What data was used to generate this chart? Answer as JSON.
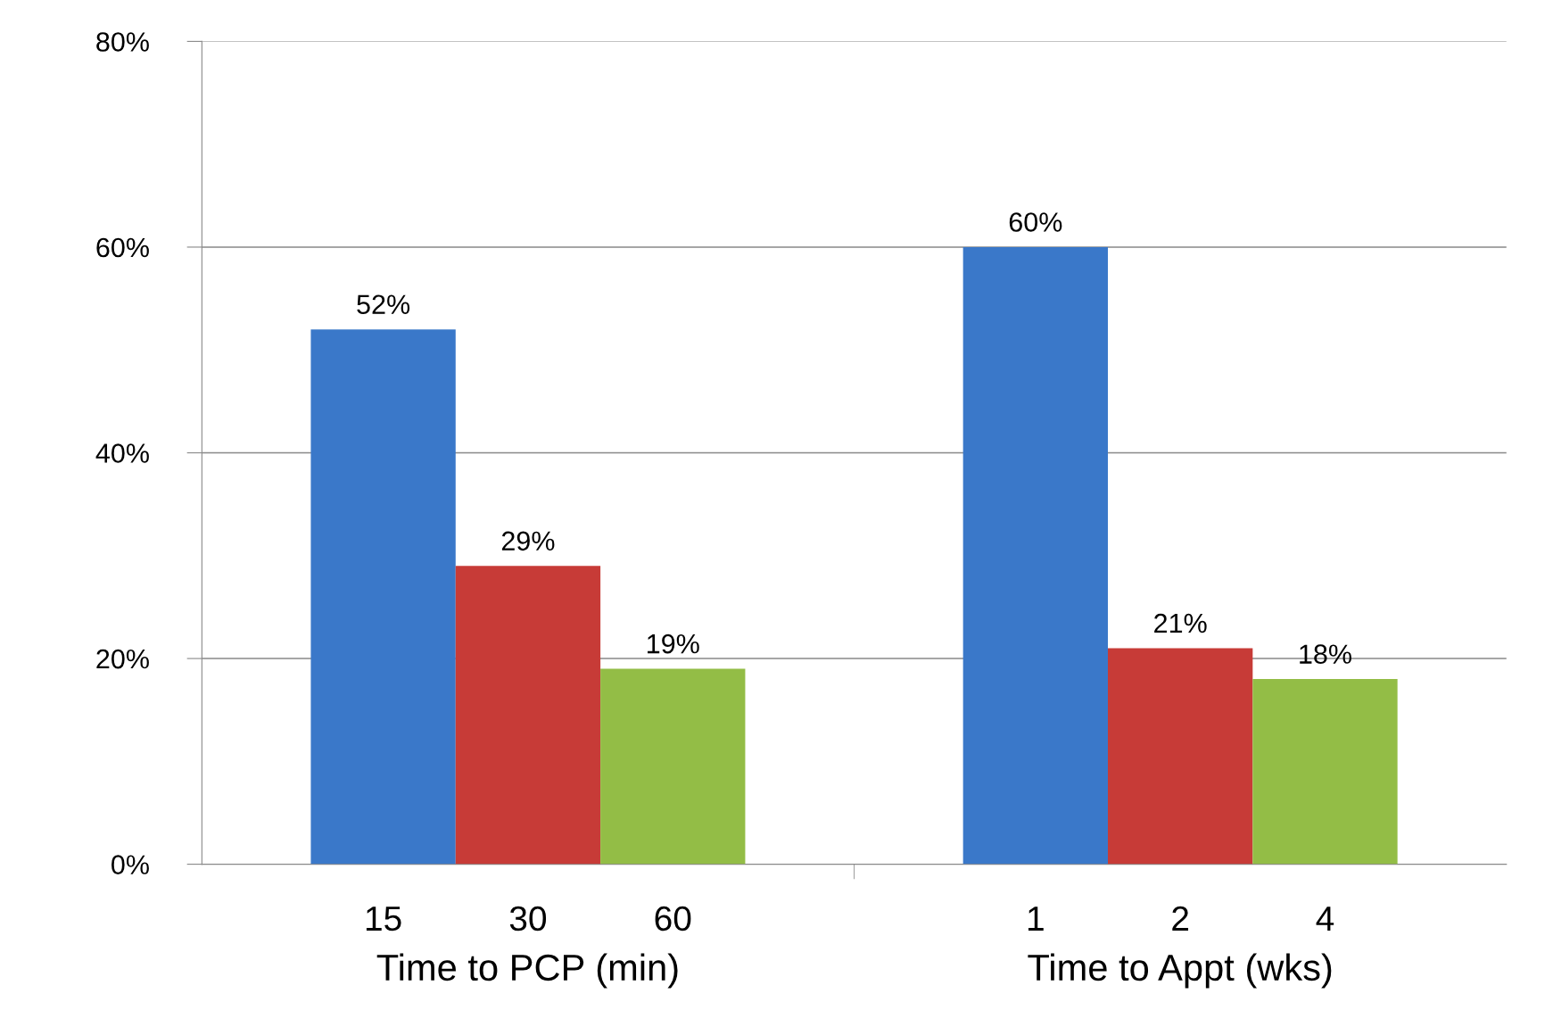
{
  "chart_data": {
    "type": "bar",
    "categories": [
      "Time to PCP (min)",
      "Time to Appt (wks)"
    ],
    "series": [
      {
        "color": "#3a78c9",
        "values": [
          52,
          60
        ],
        "value_labels": [
          "52%",
          "60%"
        ]
      },
      {
        "color": "#c73b37",
        "values": [
          29,
          21
        ],
        "value_labels": [
          "29%",
          "21%"
        ]
      },
      {
        "color": "#93bd46",
        "values": [
          19,
          18
        ],
        "value_labels": [
          "19%",
          "18%"
        ]
      }
    ],
    "ylim": [
      0,
      80
    ],
    "yticks": [
      {
        "value": 0,
        "label": "0%"
      },
      {
        "value": 20,
        "label": "20%"
      },
      {
        "value": 40,
        "label": "40%"
      },
      {
        "value": 60,
        "label": "60%"
      },
      {
        "value": 80,
        "label": "80%"
      }
    ],
    "annotations": [
      "15",
      "30",
      "60",
      "1",
      "2",
      "4"
    ],
    "grid": "y"
  }
}
